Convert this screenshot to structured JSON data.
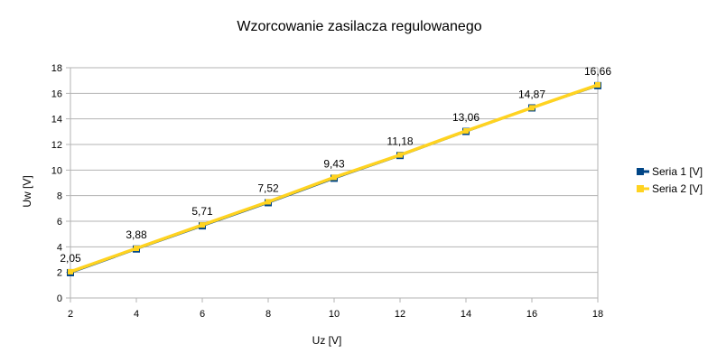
{
  "chart_data": {
    "type": "line",
    "title": "Wzorcowanie zasilacza regulowanego",
    "xlabel": "Uz [V]",
    "ylabel": "Uw [V]",
    "x": [
      2,
      4,
      6,
      8,
      10,
      12,
      14,
      16,
      18
    ],
    "xlim": [
      2,
      18
    ],
    "ylim": [
      0,
      18
    ],
    "x_ticks": [
      2,
      4,
      6,
      8,
      10,
      12,
      14,
      16,
      18
    ],
    "y_ticks": [
      0,
      2,
      4,
      6,
      8,
      10,
      12,
      14,
      16,
      18
    ],
    "grid": "horizontal",
    "legend_position": "right",
    "series": [
      {
        "name": "Seria 1 [V]",
        "color": "#004586",
        "marker": "square",
        "values": [
          1.98,
          3.83,
          5.64,
          7.45,
          9.36,
          11.14,
          13.02,
          14.86,
          16.6
        ]
      },
      {
        "name": "Seria 2 [V]",
        "color": "#ffd320",
        "marker": "square",
        "values": [
          2.05,
          3.88,
          5.71,
          7.52,
          9.43,
          11.18,
          13.06,
          14.87,
          16.66
        ],
        "data_labels": [
          "2,05",
          "3,88",
          "5,71",
          "7,52",
          "9,43",
          "11,18",
          "13,06",
          "14,87",
          "16,66"
        ]
      }
    ]
  }
}
